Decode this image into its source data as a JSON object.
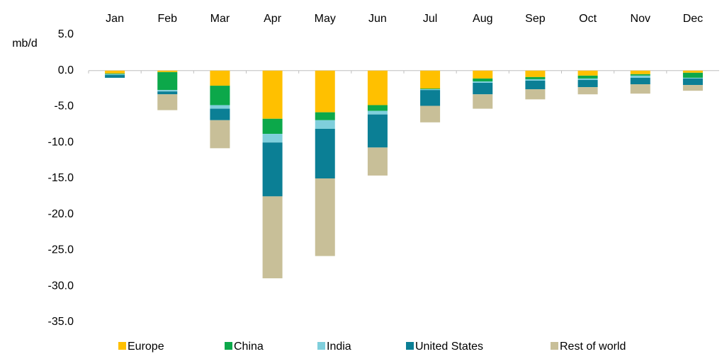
{
  "chart_data": {
    "type": "stacked_bar",
    "y_label": "mb/d",
    "categories": [
      "Jan",
      "Feb",
      "Mar",
      "Apr",
      "May",
      "Jun",
      "Jul",
      "Aug",
      "Sep",
      "Oct",
      "Nov",
      "Dec"
    ],
    "series": [
      {
        "name": "Europe",
        "color": "#ffc000",
        "values": [
          -0.4,
          -0.2,
          -2.1,
          -6.7,
          -5.8,
          -4.8,
          -2.5,
          -1.1,
          -0.9,
          -0.7,
          -0.5,
          -0.3
        ]
      },
      {
        "name": "China",
        "color": "#0ca84a",
        "values": [
          -0.1,
          -2.5,
          -2.7,
          -2.1,
          -1.1,
          -0.8,
          -0.1,
          -0.4,
          -0.3,
          -0.4,
          -0.2,
          -0.7
        ]
      },
      {
        "name": "India",
        "color": "#7fcfdc",
        "values": [
          -0.1,
          -0.2,
          -0.5,
          -1.2,
          -1.2,
          -0.5,
          -0.1,
          -0.2,
          -0.2,
          -0.2,
          -0.3,
          -0.1
        ]
      },
      {
        "name": "United States",
        "color": "#0b7f95",
        "values": [
          -0.4,
          -0.4,
          -1.6,
          -7.5,
          -6.9,
          -4.6,
          -2.2,
          -1.6,
          -1.2,
          -1.0,
          -0.9,
          -0.9
        ]
      },
      {
        "name": "Rest of world",
        "color": "#c8bf98",
        "values": [
          0,
          -2.2,
          -3.9,
          -11.4,
          -10.8,
          -3.9,
          -2.3,
          -2.0,
          -1.4,
          -1.0,
          -1.3,
          -0.8
        ]
      }
    ],
    "ylim": [
      -35,
      5
    ],
    "yticks": [
      {
        "value": 5,
        "label": "5.0"
      },
      {
        "value": 0,
        "label": "0.0"
      },
      {
        "value": -5,
        "label": "-5.0"
      },
      {
        "value": -10,
        "label": "-10.0"
      },
      {
        "value": -15,
        "label": "-15.0"
      },
      {
        "value": -20,
        "label": "-20.0"
      },
      {
        "value": -25,
        "label": "-25.0"
      },
      {
        "value": -30,
        "label": "-30.0"
      },
      {
        "value": -35,
        "label": "-35.0"
      }
    ],
    "legend": "bottom"
  }
}
